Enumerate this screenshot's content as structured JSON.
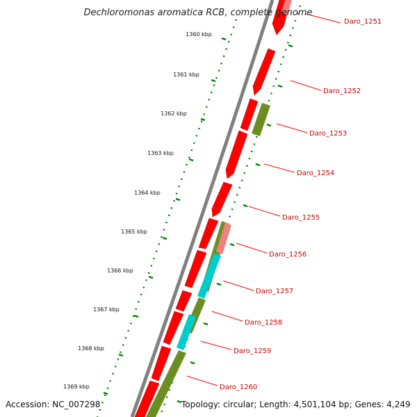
{
  "title": "Dechloromonas aromatica RCB, complete genome",
  "footer": {
    "accession": "Accession: NC_007298",
    "topology": "Topology: circular; Length: 4,501,104 bp; Genes: 4,249"
  },
  "colors": {
    "backbone": "#808080",
    "gene_forward": "#ff0000",
    "gene_highlight": "#f08080",
    "feature_olive": "#6b8e23",
    "feature_cyan": "#00cccc",
    "tick": "#008000",
    "label_line": "#ff0000",
    "label_text": "#cc0000"
  },
  "ticks": [
    {
      "label": "1360 kbp"
    },
    {
      "label": "1361 kbp"
    },
    {
      "label": "1362 kbp"
    },
    {
      "label": "1363 kbp"
    },
    {
      "label": "1364 kbp"
    },
    {
      "label": "1365 kbp"
    },
    {
      "label": "1366 kbp"
    },
    {
      "label": "1367 kbp"
    },
    {
      "label": "1368 kbp"
    },
    {
      "label": "1369 kbp"
    }
  ],
  "genes": [
    {
      "label": "Daro_1251"
    },
    {
      "label": "Daro_1252"
    },
    {
      "label": "Daro_1253"
    },
    {
      "label": "Daro_1254"
    },
    {
      "label": "Daro_1255"
    },
    {
      "label": "Daro_1256"
    },
    {
      "label": "Daro_1257"
    },
    {
      "label": "Daro_1258"
    },
    {
      "label": "Daro_1259"
    },
    {
      "label": "Daro_1260"
    }
  ]
}
